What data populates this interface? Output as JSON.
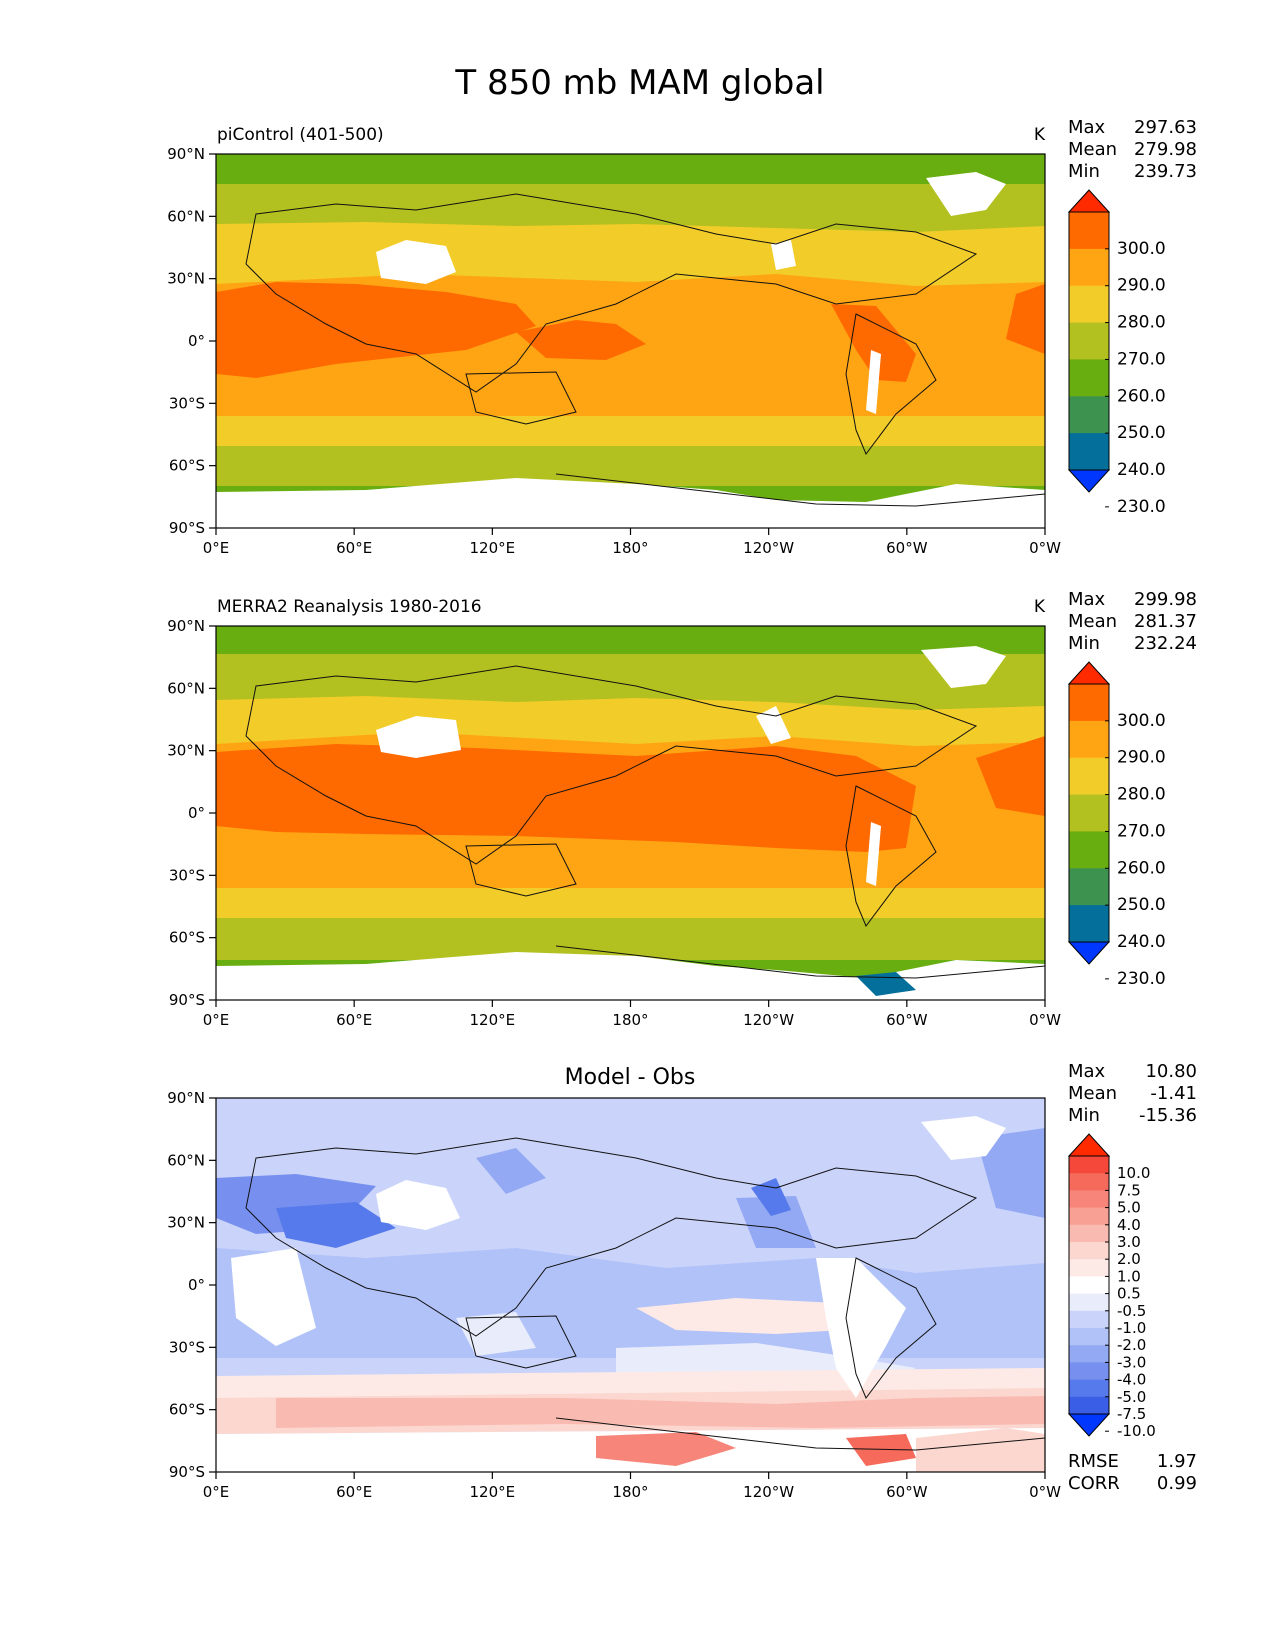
{
  "figure": {
    "title": "T 850 mb MAM global"
  },
  "panels": [
    {
      "left_title": "piControl (401-500)",
      "center_title": "",
      "units": "K",
      "stats": [
        {
          "label": "Max",
          "value": "297.63"
        },
        {
          "label": "Mean",
          "value": "279.98"
        },
        {
          "label": "Min",
          "value": "239.73"
        }
      ],
      "colorbar": {
        "labels": [
          "300.0",
          "290.0",
          "280.0",
          "270.0",
          "260.0",
          "250.0",
          "240.0",
          "230.0"
        ],
        "colors": [
          "#ff2a00",
          "#ff6a00",
          "#ffa514",
          "#f2cc29",
          "#b2c020",
          "#68ae10",
          "#3e9250",
          "#036f9a",
          "#0037ff"
        ]
      },
      "footer": []
    },
    {
      "left_title": "MERRA2 Reanalysis 1980-2016",
      "center_title": "",
      "units": "K",
      "stats": [
        {
          "label": "Max",
          "value": "299.98"
        },
        {
          "label": "Mean",
          "value": "281.37"
        },
        {
          "label": "Min",
          "value": "232.24"
        }
      ],
      "colorbar": {
        "labels": [
          "300.0",
          "290.0",
          "280.0",
          "270.0",
          "260.0",
          "250.0",
          "240.0",
          "230.0"
        ],
        "colors": [
          "#ff2a00",
          "#ff6a00",
          "#ffa514",
          "#f2cc29",
          "#b2c020",
          "#68ae10",
          "#3e9250",
          "#036f9a",
          "#0037ff"
        ]
      },
      "footer": []
    },
    {
      "left_title": "",
      "center_title": "Model - Obs",
      "units": "",
      "stats": [
        {
          "label": "Max",
          "value": "10.80"
        },
        {
          "label": "Mean",
          "value": "-1.41"
        },
        {
          "label": "Min",
          "value": "-15.36"
        }
      ],
      "colorbar": {
        "labels": [
          "10.0",
          "7.5",
          "5.0",
          "4.0",
          "3.0",
          "2.0",
          "1.0",
          "0.5",
          "-0.5",
          "-1.0",
          "-2.0",
          "-3.0",
          "-4.0",
          "-5.0",
          "-7.5",
          "-10.0"
        ],
        "colors": [
          "#ff2a00",
          "#f5473a",
          "#f56a5b",
          "#f7857a",
          "#f8a094",
          "#f9bbb1",
          "#fbd7d0",
          "#fdeae6",
          "#ffffff",
          "#e8ecfb",
          "#cad4fa",
          "#b1c2f8",
          "#94a9f3",
          "#7790ef",
          "#567aeb",
          "#3a5ee6",
          "#0037ff"
        ]
      },
      "footer": [
        {
          "label": "RMSE",
          "value": "1.97"
        },
        {
          "label": "CORR",
          "value": "0.99"
        }
      ]
    }
  ],
  "axes": {
    "y_ticks": [
      "90°N",
      "60°N",
      "30°N",
      "0°",
      "30°S",
      "60°S",
      "90°S"
    ],
    "x_ticks": [
      "0°E",
      "60°E",
      "120°E",
      "180°",
      "120°W",
      "60°W",
      "0°W"
    ]
  }
}
